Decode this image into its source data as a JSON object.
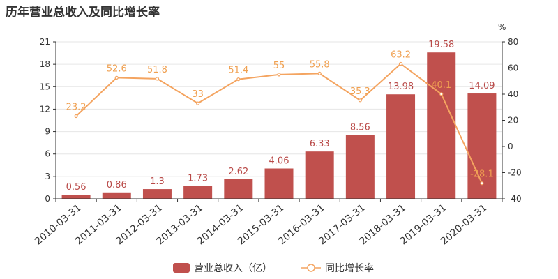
{
  "chart_data": {
    "type": "bar+line",
    "title": "历年营业总收入及同比增长率",
    "categories": [
      "2010-03-31",
      "2011-03-31",
      "2012-03-31",
      "2013-03-31",
      "2014-03-31",
      "2015-03-31",
      "2016-03-31",
      "2017-03-31",
      "2018-03-31",
      "2019-03-31",
      "2020-03-31"
    ],
    "series": [
      {
        "name": "营业总收入（亿）",
        "type": "bar",
        "axis": "left",
        "color": "#c0504d",
        "label_color": "#b94a48",
        "values": [
          0.56,
          0.86,
          1.3,
          1.73,
          2.62,
          4.06,
          6.33,
          8.56,
          13.98,
          19.58,
          14.09
        ]
      },
      {
        "name": "同比增长率",
        "type": "line",
        "axis": "right",
        "color": "#f4a460",
        "label_color": "#f0a050",
        "values": [
          23.2,
          52.6,
          51.8,
          33,
          51.4,
          55,
          55.8,
          35.3,
          63.2,
          40.1,
          -28.1
        ]
      }
    ],
    "left_axis": {
      "min": 0,
      "max": 21,
      "ticks": [
        0,
        3,
        6,
        9,
        12,
        15,
        18,
        21
      ]
    },
    "right_axis": {
      "min": -40,
      "max": 80,
      "ticks": [
        -40,
        -20,
        0,
        20,
        40,
        60,
        80
      ],
      "unit": "%"
    },
    "grid": true,
    "legend_position": "bottom-center"
  }
}
